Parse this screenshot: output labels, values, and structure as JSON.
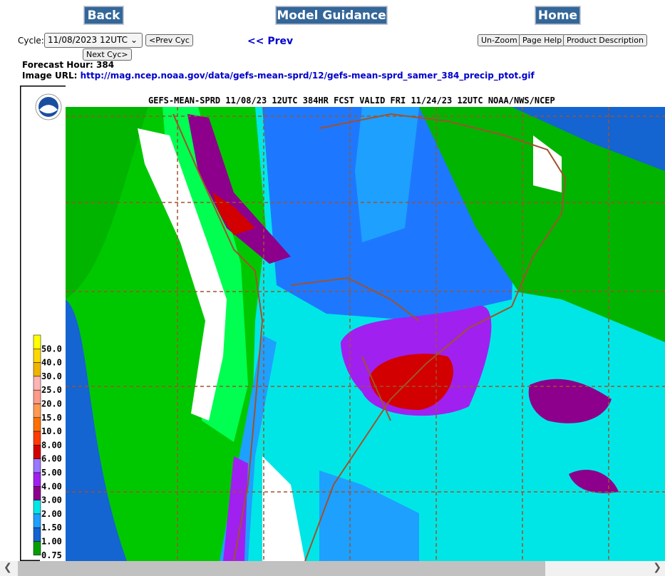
{
  "nav": {
    "back": "Back",
    "guidance": "Model Guidance",
    "home": "Home"
  },
  "controls": {
    "cycle_label": "Cycle:",
    "cycle_value": "11/08/2023 12UTC",
    "prev_cycle": "<Prev Cyc",
    "next_cycle": "Next Cyc>",
    "prev": "<< Prev",
    "unzoom": "Un-Zoom",
    "help": "Page Help",
    "description": "Product Description"
  },
  "info": {
    "hour_label": "Forecast Hour:",
    "hour": "384",
    "url_label": "Image URL:",
    "url": "http://mag.ncep.noaa.gov/data/gefs-mean-sprd/12/gefs-mean-sprd_samer_384_precip_ptot.gif"
  },
  "map": {
    "title": "GEFS-MEAN-SPRD 11/08/23 12UTC 384HR FCST VALID FRI 11/24/23 12UTC NOAA/NWS/NCEP",
    "legend": [
      {
        "label": "50.0",
        "color": "#ffff00"
      },
      {
        "label": "40.0",
        "color": "#ffd700"
      },
      {
        "label": "30.0",
        "color": "#f0b400"
      },
      {
        "label": "25.0",
        "color": "#ffb4b4"
      },
      {
        "label": "20.0",
        "color": "#ff9a8a"
      },
      {
        "label": "15.0",
        "color": "#ff9a50"
      },
      {
        "label": "10.0",
        "color": "#ff7000"
      },
      {
        "label": "8.00",
        "color": "#ff3c00"
      },
      {
        "label": "6.00",
        "color": "#d20000"
      },
      {
        "label": "5.00",
        "color": "#9a78ff"
      },
      {
        "label": "4.00",
        "color": "#a020f0"
      },
      {
        "label": "3.00",
        "color": "#8c008c"
      },
      {
        "label": "2.00",
        "color": "#00e8e8"
      },
      {
        "label": "1.50",
        "color": "#1ea0ff"
      },
      {
        "label": "1.00",
        "color": "#1464d2"
      },
      {
        "label": "0.75",
        "color": "#00a000"
      }
    ]
  }
}
